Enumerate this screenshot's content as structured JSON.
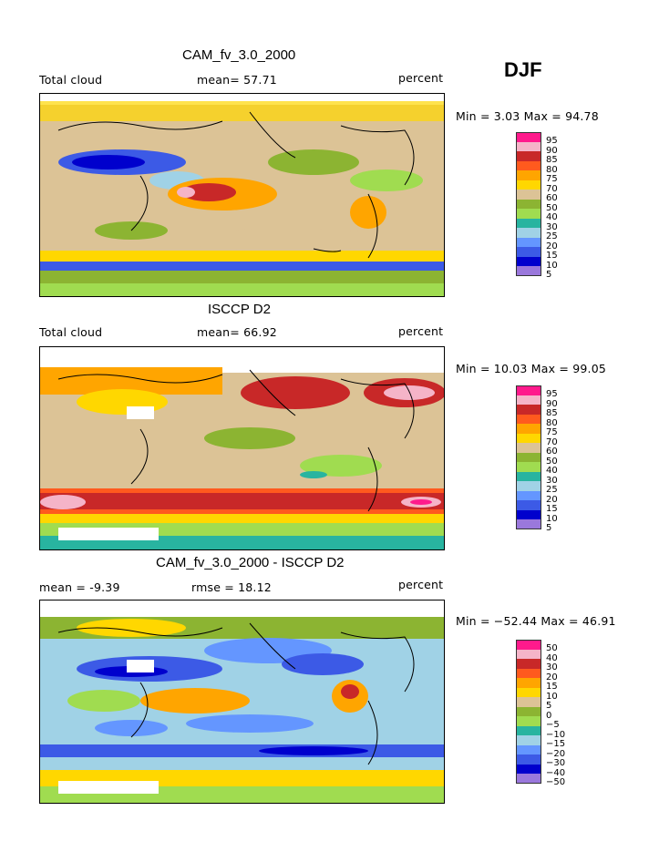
{
  "season": "DJF",
  "panels": [
    {
      "title": "CAM_fv_3.0_2000",
      "left_label": "Total cloud",
      "center_label": "mean=  57.71",
      "right_label": "percent",
      "minmax": "Min =    3.03 Max =  94.78",
      "colorbar": [
        "95",
        "90",
        "85",
        "80",
        "75",
        "70",
        "60",
        "50",
        "40",
        "30",
        "25",
        "20",
        "15",
        "10",
        "5"
      ]
    },
    {
      "title": "ISCCP D2",
      "left_label": "Total cloud",
      "center_label": "mean=  66.92",
      "right_label": "percent",
      "minmax": "Min =  10.03 Max =  99.05",
      "colorbar": [
        "95",
        "90",
        "85",
        "80",
        "75",
        "70",
        "60",
        "50",
        "40",
        "30",
        "25",
        "20",
        "15",
        "10",
        "5"
      ]
    },
    {
      "title": "CAM_fv_3.0_2000 - ISCCP D2",
      "left_label": "mean =   -9.39",
      "center_label": "rmse =  18.12",
      "right_label": "percent",
      "minmax": "Min = −52.44 Max =  46.91",
      "colorbar": [
        "50",
        "40",
        "30",
        "20",
        "15",
        "10",
        "5",
        "0",
        "−5",
        "−10",
        "−15",
        "−20",
        "−30",
        "−40",
        "−50"
      ]
    }
  ],
  "colors": [
    "#ff1a8c",
    "#f5b4c8",
    "#c82828",
    "#ff5a1e",
    "#ffa500",
    "#ffd700",
    "#dcc396",
    "#8cb432",
    "#a0dc50",
    "#28b4a0",
    "#a0d2e6",
    "#6496ff",
    "#3c5ae6",
    "#0000cd",
    "#9a78dc"
  ]
}
